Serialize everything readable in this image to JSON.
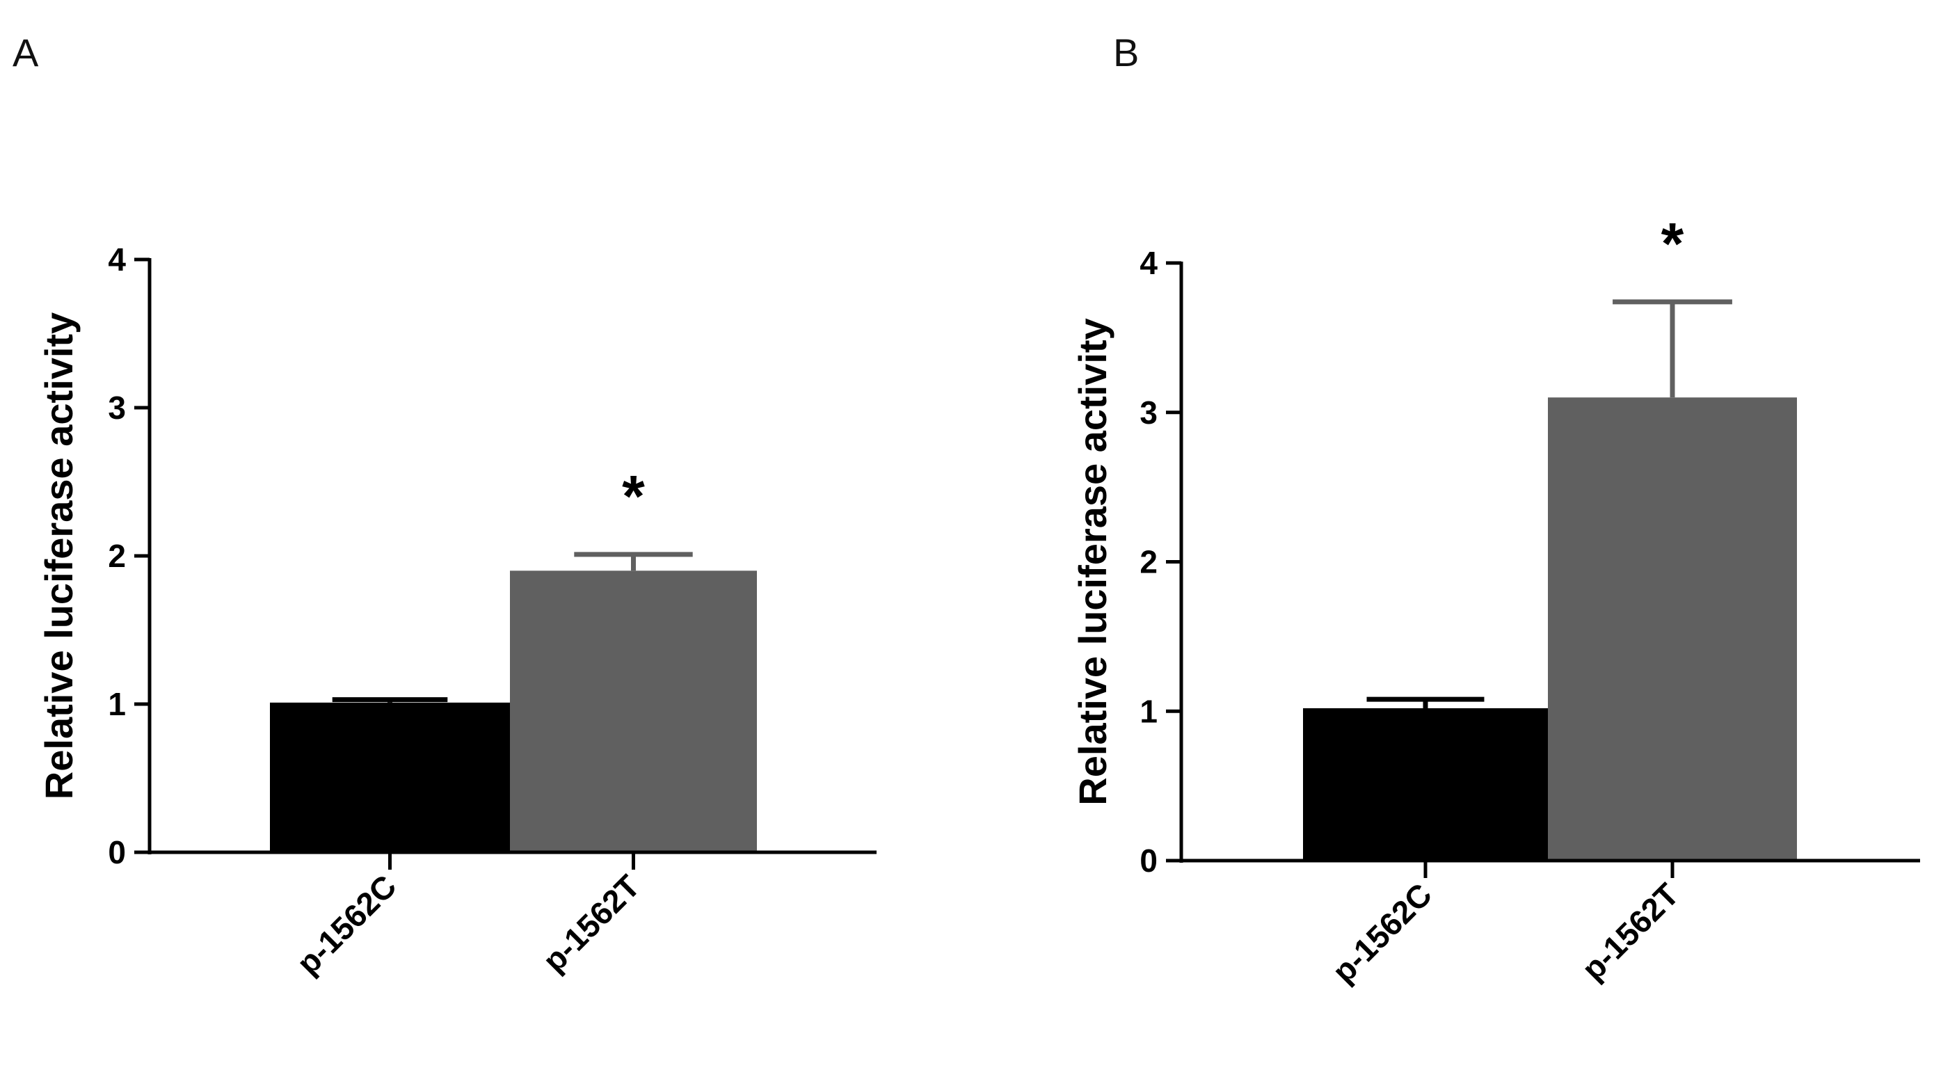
{
  "chart_data": [
    {
      "panel": "A",
      "type": "bar",
      "categories": [
        "p-1562C",
        "p-1562T"
      ],
      "values": [
        1.01,
        1.9
      ],
      "errors": [
        0.02,
        0.11
      ],
      "colors": [
        "#000000",
        "#606060"
      ],
      "annotations": [
        "",
        "*"
      ],
      "xlabel": "",
      "ylabel": "Relative luciferase activity",
      "ylim": [
        0,
        4
      ],
      "yticks": [
        "0",
        "1",
        "2",
        "3",
        "4"
      ],
      "grid": false,
      "legend": "none"
    },
    {
      "panel": "B",
      "type": "bar",
      "categories": [
        "p-1562C",
        "p-1562T"
      ],
      "values": [
        1.02,
        3.1
      ],
      "errors": [
        0.06,
        0.64
      ],
      "colors": [
        "#000000",
        "#606060"
      ],
      "annotations": [
        "",
        "*"
      ],
      "xlabel": "",
      "ylabel": "Relative luciferase activity",
      "ylim": [
        0,
        4
      ],
      "yticks": [
        "0",
        "1",
        "2",
        "3",
        "4"
      ],
      "grid": false,
      "legend": "none"
    }
  ]
}
